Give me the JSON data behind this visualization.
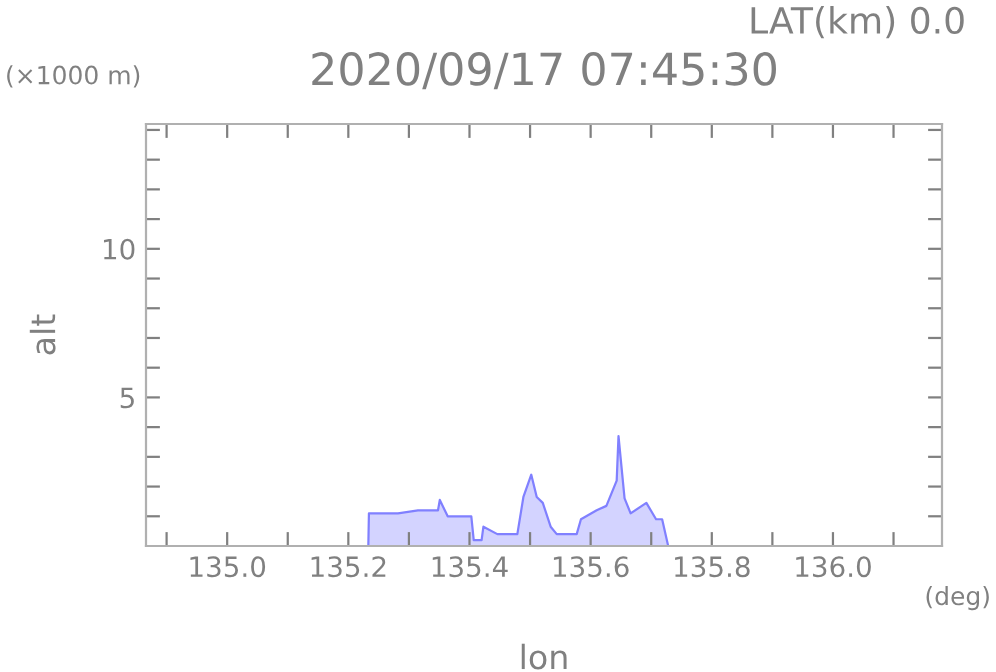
{
  "chart_data": {
    "type": "area",
    "title": "2020/09/17 07:45:30",
    "xlabel": "lon",
    "ylabel": "alt",
    "annotations": [
      "LAT(km) 0.0",
      "(×1000 m)",
      "(deg)"
    ],
    "x": [
      135.233,
      135.234,
      135.282,
      135.315,
      135.348,
      135.351,
      135.364,
      135.397,
      135.403,
      135.407,
      135.42,
      135.423,
      135.446,
      135.479,
      135.489,
      135.502,
      135.511,
      135.521,
      135.534,
      135.544,
      135.577,
      135.584,
      135.61,
      135.626,
      135.643,
      135.646,
      135.656,
      135.666,
      135.692,
      135.708,
      135.718,
      135.728
    ],
    "series": [
      {
        "color": "#8080ff",
        "values": [
          0,
          1.1,
          1.1,
          1.2,
          1.2,
          1.55,
          1.0,
          1.0,
          1.0,
          0.2,
          0.2,
          0.65,
          0.4,
          0.4,
          1.65,
          2.4,
          1.65,
          1.45,
          0.65,
          0.4,
          0.4,
          0.9,
          1.2,
          1.35,
          2.2,
          3.7,
          1.6,
          1.1,
          1.45,
          0.9,
          0.9,
          0
        ]
      }
    ],
    "xlim": [
      134.866,
      136.18
    ],
    "ylim": [
      0,
      14.2
    ],
    "xticks": [
      {
        "value": 134.9,
        "label": null
      },
      {
        "value": 135.0,
        "label": "135.0"
      },
      {
        "value": 135.1,
        "label": null
      },
      {
        "value": 135.2,
        "label": "135.2"
      },
      {
        "value": 135.3,
        "label": null
      },
      {
        "value": 135.4,
        "label": "135.4"
      },
      {
        "value": 135.5,
        "label": null
      },
      {
        "value": 135.6,
        "label": "135.6"
      },
      {
        "value": 135.7,
        "label": null
      },
      {
        "value": 135.8,
        "label": "135.8"
      },
      {
        "value": 135.9,
        "label": null
      },
      {
        "value": 136.0,
        "label": "136.0"
      },
      {
        "value": 136.1,
        "label": null
      }
    ],
    "yticks": [
      {
        "value": 1,
        "label": null
      },
      {
        "value": 2,
        "label": null
      },
      {
        "value": 3,
        "label": null
      },
      {
        "value": 4,
        "label": null
      },
      5,
      {
        "value": 6,
        "label": null
      },
      {
        "value": 7,
        "label": null
      },
      {
        "value": 8,
        "label": null
      },
      {
        "value": 9,
        "label": null
      },
      10,
      {
        "value": 11,
        "label": null
      },
      {
        "value": 12,
        "label": null
      },
      {
        "value": 13,
        "label": null
      },
      {
        "value": 14,
        "label": null
      }
    ],
    "grid": false,
    "legend": false
  }
}
